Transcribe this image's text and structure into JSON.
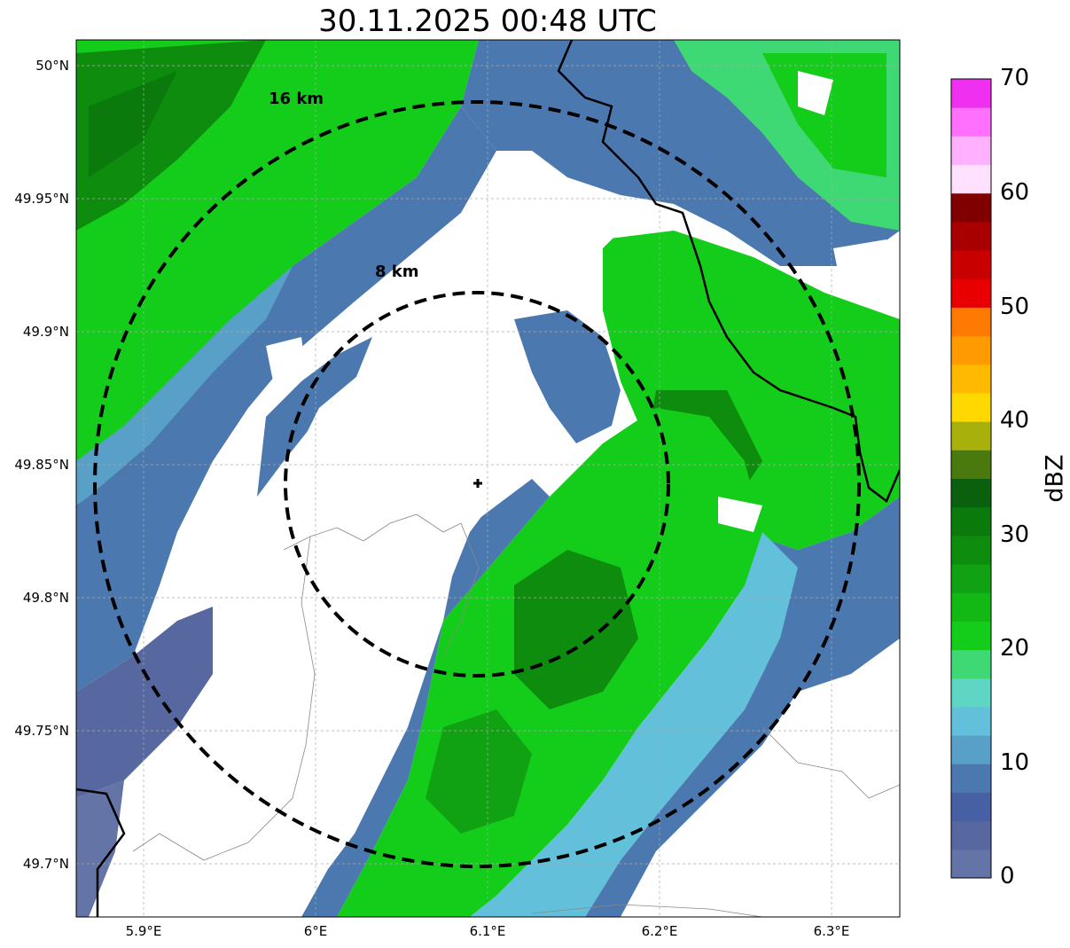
{
  "title": "30.11.2025 00:48 UTC",
  "map": {
    "lat_ticks": [
      "50°N",
      "49.95°N",
      "49.9°N",
      "49.85°N",
      "49.8°N",
      "49.75°N",
      "49.7°N"
    ],
    "lon_ticks": [
      "5.9°E",
      "6°E",
      "6.1°E",
      "6.2°E",
      "6.3°E"
    ],
    "lat_range": [
      49.68,
      50.01
    ],
    "lon_range": [
      5.86,
      6.34
    ],
    "radar_site": {
      "lon": 6.095,
      "lat": 49.843
    },
    "range_rings": [
      {
        "label": "8 km",
        "radius_km": 8
      },
      {
        "label": "16 km",
        "radius_km": 16
      }
    ],
    "grid": true
  },
  "colorbar": {
    "label": "dBZ",
    "ticks": [
      "0",
      "10",
      "20",
      "30",
      "40",
      "50",
      "60",
      "70"
    ],
    "colors": [
      "#6474a6",
      "#56689f",
      "#4760a3",
      "#4c78b0",
      "#58a0c8",
      "#63c0da",
      "#5fd6c4",
      "#3ed874",
      "#14cc1a",
      "#12b814",
      "#10a212",
      "#0d8c0e",
      "#0a7a0c",
      "#0b600e",
      "#4a7a0e",
      "#a8b00c",
      "#ffd800",
      "#ffba00",
      "#ff9a00",
      "#ff7a00",
      "#e80000",
      "#c80000",
      "#a80000",
      "#800000",
      "#ffe0ff",
      "#ffb0ff",
      "#ff70ff",
      "#f030f0"
    ]
  }
}
